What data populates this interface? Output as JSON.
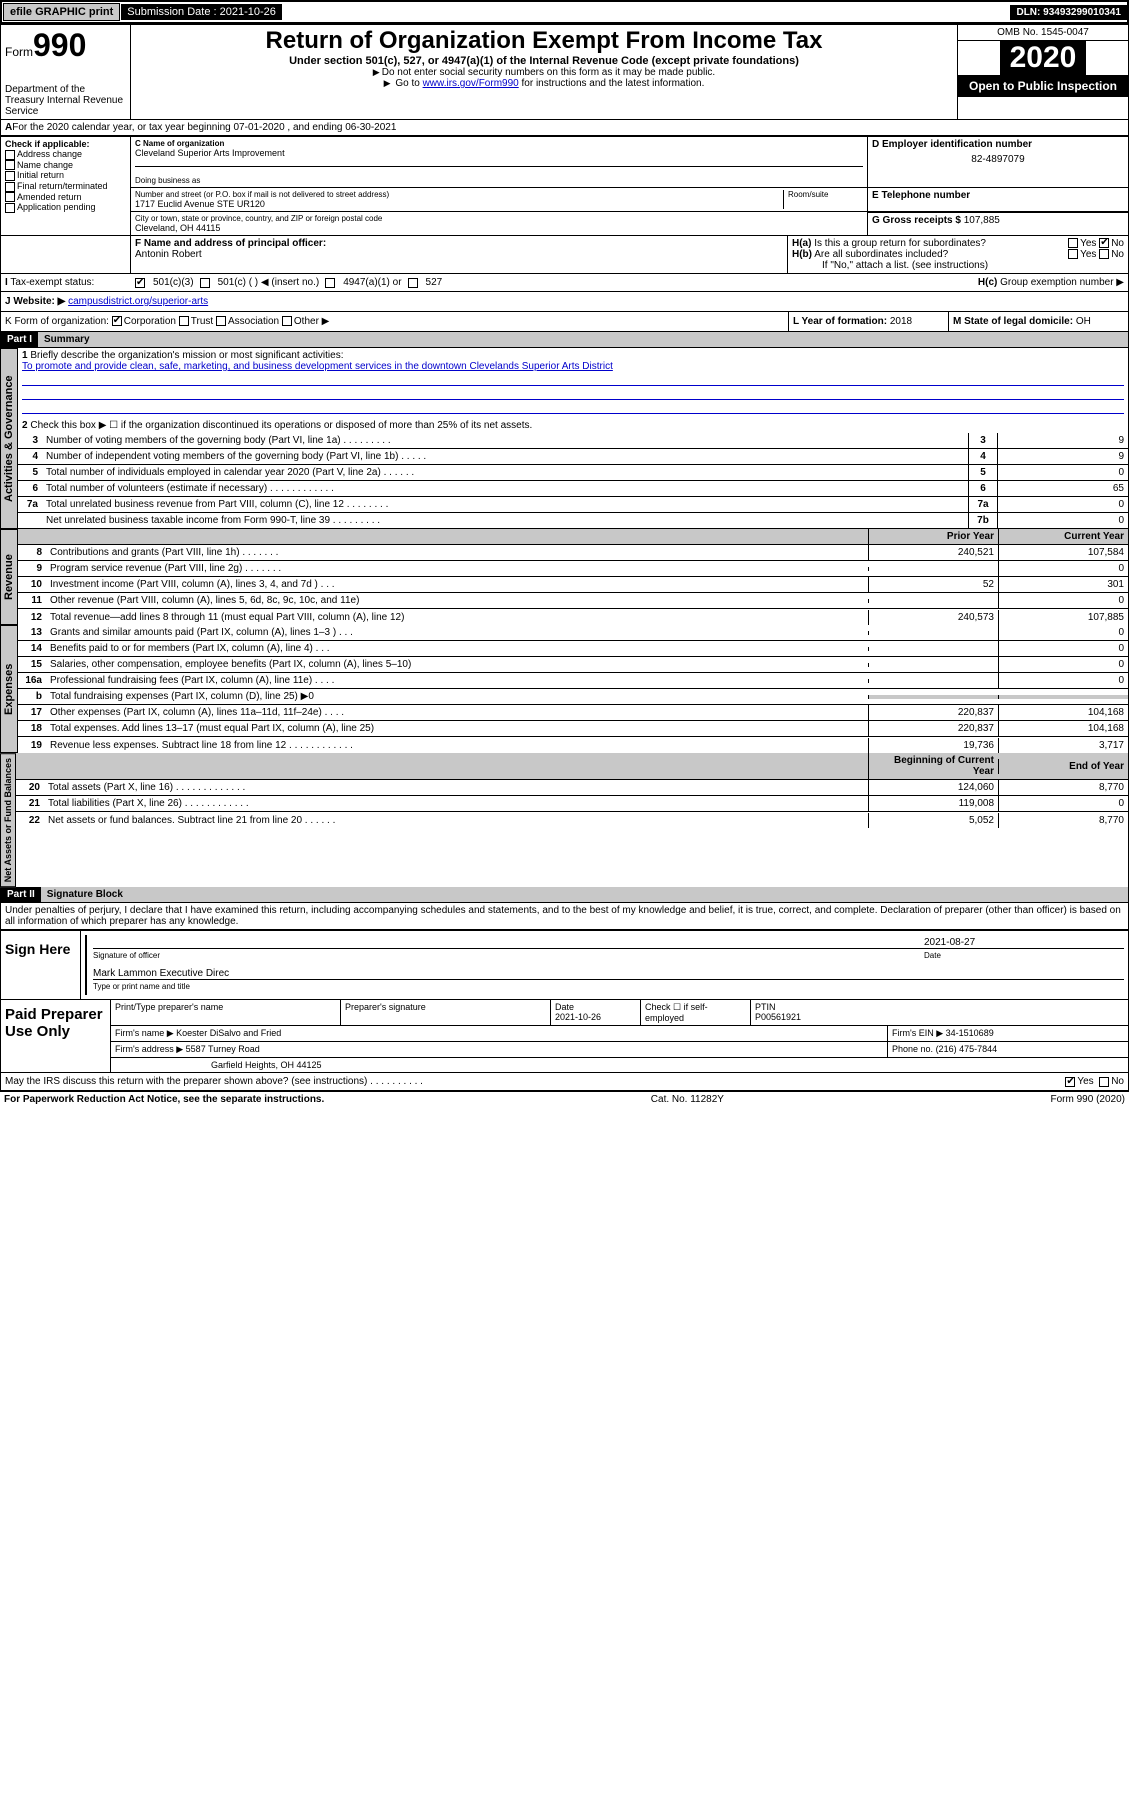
{
  "topbar": {
    "efile": "efile GRAPHIC print",
    "submission_label": "Submission Date : 2021-10-26",
    "dln": "DLN: 93493299010341"
  },
  "header": {
    "form_label": "Form",
    "form_num": "990",
    "dept": "Department of the Treasury\nInternal Revenue Service",
    "title": "Return of Organization Exempt From Income Tax",
    "subtitle": "Under section 501(c), 527, or 4947(a)(1) of the Internal Revenue Code (except private foundations)",
    "instr1": "Do not enter social security numbers on this form as it may be made public.",
    "instr2_pre": "Go to ",
    "instr2_link": "www.irs.gov/Form990",
    "instr2_post": " for instructions and the latest information.",
    "omb": "OMB No. 1545-0047",
    "year": "2020",
    "open": "Open to Public Inspection"
  },
  "lineA": "For the 2020 calendar year, or tax year beginning 07-01-2020   , and ending 06-30-2021",
  "boxB": {
    "label": "Check if applicable:",
    "opts": [
      "Address change",
      "Name change",
      "Initial return",
      "Final return/terminated",
      "Amended return",
      "Application pending"
    ]
  },
  "boxC": {
    "name_label": "C Name of organization",
    "name": "Cleveland Superior Arts Improvement",
    "dba_label": "Doing business as",
    "addr_label": "Number and street (or P.O. box if mail is not delivered to street address)",
    "room_label": "Room/suite",
    "addr": "1717 Euclid Avenue STE UR120",
    "city_label": "City or town, state or province, country, and ZIP or foreign postal code",
    "city": "Cleveland, OH  44115"
  },
  "boxD": {
    "label": "D Employer identification number",
    "val": "82-4897079"
  },
  "boxE": {
    "label": "E Telephone number",
    "val": ""
  },
  "boxG": {
    "label": "G Gross receipts $",
    "val": "107,885"
  },
  "boxF": {
    "label": "F Name and address of principal officer:",
    "val": "Antonin Robert"
  },
  "boxH": {
    "ha": "Is this a group return for subordinates?",
    "ha_ans": "No",
    "hb": "Are all subordinates included?",
    "hb_note": "If \"No,\" attach a list. (see instructions)",
    "hc": "Group exemption number ▶"
  },
  "taxExempt": {
    "label": "Tax-exempt status:",
    "c3": "501(c)(3)",
    "c": "501(c) (   ) ◀ (insert no.)",
    "a1": "4947(a)(1) or",
    "s527": "527"
  },
  "boxJ": {
    "label": "Website: ▶",
    "val": "campusdistrict.org/superior-arts"
  },
  "boxK": {
    "label": "K Form of organization:",
    "opts": [
      "Corporation",
      "Trust",
      "Association",
      "Other ▶"
    ]
  },
  "boxL": {
    "label": "L Year of formation:",
    "val": "2018"
  },
  "boxM": {
    "label": "M State of legal domicile:",
    "val": "OH"
  },
  "part1": {
    "hdr": "Part I",
    "title": "Summary",
    "l1_label": "Briefly describe the organization's mission or most significant activities:",
    "l1_text": "To promote and provide clean, safe, marketing, and business development services in the downtown Clevelands Superior Arts District",
    "l2": "Check this box ▶ ☐  if the organization discontinued its operations or disposed of more than 25% of its net assets.",
    "tabs": {
      "ag": "Activities & Governance",
      "rev": "Revenue",
      "exp": "Expenses",
      "na": "Net Assets or Fund Balances"
    },
    "rows_single": [
      {
        "n": "3",
        "d": "Number of voting members of the governing body (Part VI, line 1a)   .    .    .    .    .    .    .    .    .",
        "k": "3",
        "v": "9"
      },
      {
        "n": "4",
        "d": "Number of independent voting members of the governing body (Part VI, line 1b)   .    .    .    .    .",
        "k": "4",
        "v": "9"
      },
      {
        "n": "5",
        "d": "Total number of individuals employed in calendar year 2020 (Part V, line 2a)   .    .    .    .    .    .",
        "k": "5",
        "v": "0"
      },
      {
        "n": "6",
        "d": "Total number of volunteers (estimate if necessary)   .    .    .    .    .    .    .    .    .    .    .    .",
        "k": "6",
        "v": "65"
      },
      {
        "n": "7a",
        "d": "Total unrelated business revenue from Part VIII, column (C), line 12    .    .    .    .    .    .    .    .",
        "k": "7a",
        "v": "0"
      },
      {
        "n": "",
        "d": "Net unrelated business taxable income from Form 990-T, line 39   .    .    .    .    .    .    .    .    .",
        "k": "7b",
        "v": "0"
      }
    ],
    "col_hdrs": {
      "py": "Prior Year",
      "cy": "Current Year"
    },
    "rows_rev": [
      {
        "n": "8",
        "d": "Contributions and grants (Part VIII, line 1h)   .    .    .    .    .    .    .",
        "py": "240,521",
        "cy": "107,584"
      },
      {
        "n": "9",
        "d": "Program service revenue (Part VIII, line 2g)   .    .    .    .    .    .    .",
        "py": "",
        "cy": "0"
      },
      {
        "n": "10",
        "d": "Investment income (Part VIII, column (A), lines 3, 4, and 7d )   .    .    .",
        "py": "52",
        "cy": "301"
      },
      {
        "n": "11",
        "d": "Other revenue (Part VIII, column (A), lines 5, 6d, 8c, 9c, 10c, and 11e)",
        "py": "",
        "cy": "0"
      },
      {
        "n": "12",
        "d": "Total revenue—add lines 8 through 11 (must equal Part VIII, column (A), line 12)",
        "py": "240,573",
        "cy": "107,885"
      }
    ],
    "rows_exp": [
      {
        "n": "13",
        "d": "Grants and similar amounts paid (Part IX, column (A), lines 1–3 )   .    .    .",
        "py": "",
        "cy": "0"
      },
      {
        "n": "14",
        "d": "Benefits paid to or for members (Part IX, column (A), line 4)   .    .    .",
        "py": "",
        "cy": "0"
      },
      {
        "n": "15",
        "d": "Salaries, other compensation, employee benefits (Part IX, column (A), lines 5–10)",
        "py": "",
        "cy": "0"
      },
      {
        "n": "16a",
        "d": "Professional fundraising fees (Part IX, column (A), line 11e)   .    .    .    .",
        "py": "",
        "cy": "0"
      },
      {
        "n": "b",
        "d": "Total fundraising expenses (Part IX, column (D), line 25) ▶0",
        "py": "__SHADE__",
        "cy": "__SHADE__"
      },
      {
        "n": "17",
        "d": "Other expenses (Part IX, column (A), lines 11a–11d, 11f–24e)   .    .    .    .",
        "py": "220,837",
        "cy": "104,168"
      },
      {
        "n": "18",
        "d": "Total expenses. Add lines 13–17 (must equal Part IX, column (A), line 25)",
        "py": "220,837",
        "cy": "104,168"
      },
      {
        "n": "19",
        "d": "Revenue less expenses. Subtract line 18 from line 12 .    .    .    .    .    .    .    .    .    .    .    .",
        "py": "19,736",
        "cy": "3,717"
      }
    ],
    "col_hdrs2": {
      "py": "Beginning of Current Year",
      "cy": "End of Year"
    },
    "rows_na": [
      {
        "n": "20",
        "d": "Total assets (Part X, line 16)   .    .    .    .    .    .    .    .    .    .    .    .    .",
        "py": "124,060",
        "cy": "8,770"
      },
      {
        "n": "21",
        "d": "Total liabilities (Part X, line 26)   .    .    .    .    .    .    .    .    .    .    .    .",
        "py": "119,008",
        "cy": "0"
      },
      {
        "n": "22",
        "d": "Net assets or fund balances. Subtract line 21 from line 20 .    .    .    .    .    .",
        "py": "5,052",
        "cy": "8,770"
      }
    ]
  },
  "part2": {
    "hdr": "Part II",
    "title": "Signature Block",
    "decl": "Under penalties of perjury, I declare that I have examined this return, including accompanying schedules and statements, and to the best of my knowledge and belief, it is true, correct, and complete. Declaration of preparer (other than officer) is based on all information of which preparer has any knowledge."
  },
  "sign": {
    "label": "Sign Here",
    "sig_label": "Signature of officer",
    "date": "2021-08-27",
    "date_label": "Date",
    "name": "Mark Lammon Executive Direc",
    "name_label": "Type or print name and title"
  },
  "paid": {
    "label": "Paid Preparer Use Only",
    "r1": {
      "c1_label": "Print/Type preparer's name",
      "c2_label": "Preparer's signature",
      "c3_label": "Date",
      "c3_val": "2021-10-26",
      "c4_label": "Check ☐ if self-employed",
      "c5_label": "PTIN",
      "c5_val": "P00561921"
    },
    "r2": {
      "label": "Firm's name    ▶",
      "val": "Koester DiSalvo and Fried",
      "ein_label": "Firm's EIN ▶",
      "ein": "34-1510689"
    },
    "r3": {
      "label": "Firm's address ▶",
      "val": "5587 Turney Road",
      "phone_label": "Phone no.",
      "phone": "(216) 475-7844"
    },
    "r3b": {
      "val": "Garfield Heights, OH  44125"
    }
  },
  "discuss": {
    "q": "May the IRS discuss this return with the preparer shown above? (see instructions)   .    .    .    .    .    .    .    .    .    .",
    "ans": "Yes"
  },
  "footer": {
    "pra": "For Paperwork Reduction Act Notice, see the separate instructions.",
    "cat": "Cat. No. 11282Y",
    "form": "Form 990 (2020)"
  }
}
